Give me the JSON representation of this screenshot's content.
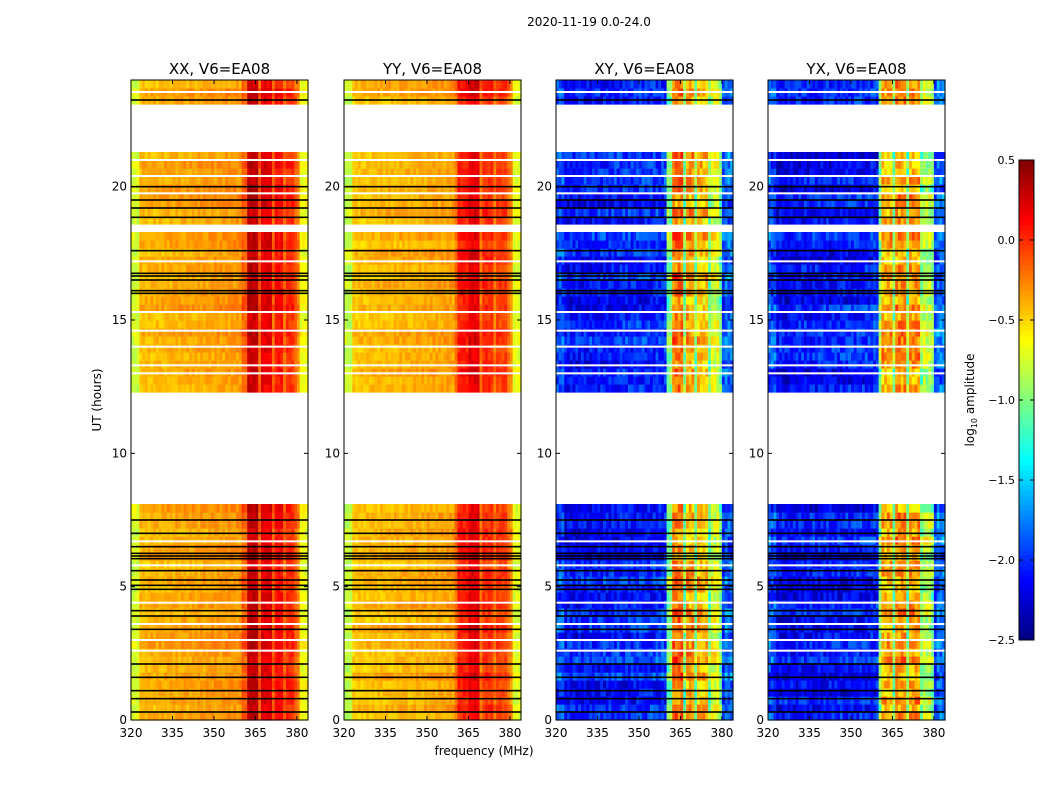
{
  "chart_data": {
    "type": "heatmap",
    "title": "2020-11-19 0.0-24.0",
    "xlabel": "frequency (MHz)",
    "ylabel": "UT (hours)",
    "xlim": [
      320,
      384
    ],
    "ylim": [
      0,
      24
    ],
    "xticks": [
      "320",
      "335",
      "350",
      "365",
      "380"
    ],
    "xtick_values": [
      320,
      335,
      350,
      365,
      380
    ],
    "yticks": [
      "0",
      "5",
      "10",
      "15",
      "20"
    ],
    "ytick_values": [
      0,
      5,
      10,
      15,
      20
    ],
    "colorbar": {
      "label_main": "log",
      "label_sub": "10",
      "label_tail": " amplitude",
      "range": [
        -2.5,
        0.5
      ],
      "colormap": "jet",
      "ticks": [
        "0.5",
        "0.0",
        "−0.5",
        "−1.0",
        "−1.5",
        "−2.0",
        "−2.5"
      ],
      "tick_values": [
        0.5,
        0.0,
        -0.5,
        -1.0,
        -1.5,
        -2.0,
        -2.5
      ]
    },
    "no_data_gaps_hours": [
      [
        8.15,
        12.4
      ],
      [
        21.4,
        23.2
      ],
      [
        18.3,
        18.65
      ]
    ],
    "flagged_lines_hours": [
      0.3,
      0.8,
      1.1,
      1.6,
      2.1,
      3.4,
      3.9,
      4.1,
      4.9,
      5.05,
      5.25,
      5.6,
      6.05,
      6.15,
      6.25,
      6.5,
      7.0,
      7.5,
      16.0,
      16.1,
      16.5,
      16.65,
      16.75,
      17.6,
      18.85,
      19.2,
      19.5,
      20.0,
      23.25
    ],
    "blank_lines_hours": [
      2.6,
      3.0,
      3.6,
      4.4,
      5.8,
      6.7,
      13.0,
      13.3,
      14.0,
      14.6,
      15.3,
      17.2,
      19.75,
      20.4,
      21.0,
      23.55
    ],
    "panels": [
      {
        "title": "XX, V6=EA08",
        "base": -0.42,
        "edge": -0.75,
        "band_base": -0.15,
        "band_segments": [
          [
            362,
            366,
            0.3
          ],
          [
            367,
            371,
            0.2
          ],
          [
            372,
            375,
            0.1
          ],
          [
            376,
            379,
            0.0
          ]
        ],
        "noise": 0.08
      },
      {
        "title": "YY, V6=EA08",
        "base": -0.45,
        "edge": -0.8,
        "band_base": -0.2,
        "band_segments": [
          [
            361,
            365,
            0.05
          ],
          [
            365,
            369,
            0.2
          ],
          [
            370,
            374,
            0.0
          ],
          [
            375,
            379,
            -0.05
          ]
        ],
        "noise": 0.08
      },
      {
        "title": "XY, V6=EA08",
        "base": -2.1,
        "edge": -1.9,
        "band_base": -1.0,
        "band_segments": [
          [
            362,
            366,
            -0.2
          ],
          [
            367,
            370,
            -0.35
          ],
          [
            371,
            375,
            -0.45
          ],
          [
            376,
            379,
            -0.7
          ]
        ],
        "noise": 0.2
      },
      {
        "title": "YX, V6=EA08",
        "base": -2.15,
        "edge": -1.9,
        "band_base": -1.0,
        "band_segments": [
          [
            361,
            365,
            -0.4
          ],
          [
            366,
            370,
            -0.3
          ],
          [
            371,
            375,
            -0.35
          ],
          [
            376,
            379,
            -0.8
          ]
        ],
        "noise": 0.2
      }
    ]
  }
}
